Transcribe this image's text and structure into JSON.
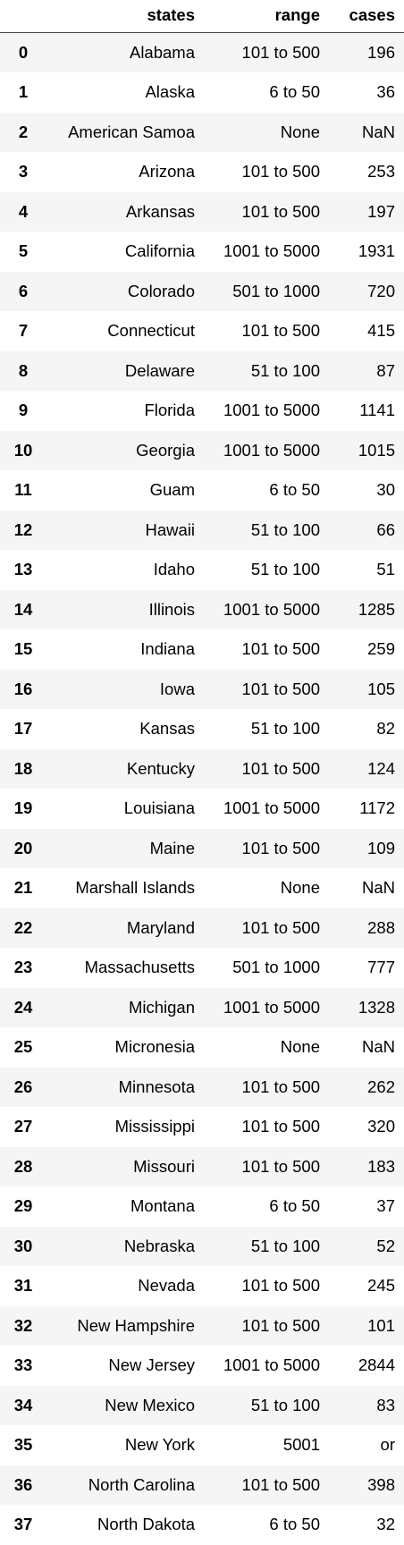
{
  "columns": {
    "index": "",
    "states": "states",
    "range": "range",
    "cases": "cases"
  },
  "rows": [
    {
      "idx": "0",
      "state": "Alabama",
      "range": "101 to 500",
      "cases": "196"
    },
    {
      "idx": "1",
      "state": "Alaska",
      "range": "6 to 50",
      "cases": "36"
    },
    {
      "idx": "2",
      "state": "American Samoa",
      "range": "None",
      "cases": "NaN"
    },
    {
      "idx": "3",
      "state": "Arizona",
      "range": "101 to 500",
      "cases": "253"
    },
    {
      "idx": "4",
      "state": "Arkansas",
      "range": "101 to 500",
      "cases": "197"
    },
    {
      "idx": "5",
      "state": "California",
      "range": "1001 to 5000",
      "cases": "1931"
    },
    {
      "idx": "6",
      "state": "Colorado",
      "range": "501 to 1000",
      "cases": "720"
    },
    {
      "idx": "7",
      "state": "Connecticut",
      "range": "101 to 500",
      "cases": "415"
    },
    {
      "idx": "8",
      "state": "Delaware",
      "range": "51 to 100",
      "cases": "87"
    },
    {
      "idx": "9",
      "state": "Florida",
      "range": "1001 to 5000",
      "cases": "1141"
    },
    {
      "idx": "10",
      "state": "Georgia",
      "range": "1001 to 5000",
      "cases": "1015"
    },
    {
      "idx": "11",
      "state": "Guam",
      "range": "6 to 50",
      "cases": "30"
    },
    {
      "idx": "12",
      "state": "Hawaii",
      "range": "51 to 100",
      "cases": "66"
    },
    {
      "idx": "13",
      "state": "Idaho",
      "range": "51 to 100",
      "cases": "51"
    },
    {
      "idx": "14",
      "state": "Illinois",
      "range": "1001 to 5000",
      "cases": "1285"
    },
    {
      "idx": "15",
      "state": "Indiana",
      "range": "101 to 500",
      "cases": "259"
    },
    {
      "idx": "16",
      "state": "Iowa",
      "range": "101 to 500",
      "cases": "105"
    },
    {
      "idx": "17",
      "state": "Kansas",
      "range": "51 to 100",
      "cases": "82"
    },
    {
      "idx": "18",
      "state": "Kentucky",
      "range": "101 to 500",
      "cases": "124"
    },
    {
      "idx": "19",
      "state": "Louisiana",
      "range": "1001 to 5000",
      "cases": "1172"
    },
    {
      "idx": "20",
      "state": "Maine",
      "range": "101 to 500",
      "cases": "109"
    },
    {
      "idx": "21",
      "state": "Marshall Islands",
      "range": "None",
      "cases": "NaN"
    },
    {
      "idx": "22",
      "state": "Maryland",
      "range": "101 to 500",
      "cases": "288"
    },
    {
      "idx": "23",
      "state": "Massachusetts",
      "range": "501 to 1000",
      "cases": "777"
    },
    {
      "idx": "24",
      "state": "Michigan",
      "range": "1001 to 5000",
      "cases": "1328"
    },
    {
      "idx": "25",
      "state": "Micronesia",
      "range": "None",
      "cases": "NaN"
    },
    {
      "idx": "26",
      "state": "Minnesota",
      "range": "101 to 500",
      "cases": "262"
    },
    {
      "idx": "27",
      "state": "Mississippi",
      "range": "101 to 500",
      "cases": "320"
    },
    {
      "idx": "28",
      "state": "Missouri",
      "range": "101 to 500",
      "cases": "183"
    },
    {
      "idx": "29",
      "state": "Montana",
      "range": "6 to 50",
      "cases": "37"
    },
    {
      "idx": "30",
      "state": "Nebraska",
      "range": "51 to 100",
      "cases": "52"
    },
    {
      "idx": "31",
      "state": "Nevada",
      "range": "101 to 500",
      "cases": "245"
    },
    {
      "idx": "32",
      "state": "New Hampshire",
      "range": "101 to 500",
      "cases": "101"
    },
    {
      "idx": "33",
      "state": "New Jersey",
      "range": "1001 to 5000",
      "cases": "2844"
    },
    {
      "idx": "34",
      "state": "New Mexico",
      "range": "51 to 100",
      "cases": "83"
    },
    {
      "idx": "35",
      "state": "New York",
      "range": "5001",
      "cases": "or"
    },
    {
      "idx": "36",
      "state": "North Carolina",
      "range": "101 to 500",
      "cases": "398"
    },
    {
      "idx": "37",
      "state": "North Dakota",
      "range": "6 to 50",
      "cases": "32"
    }
  ]
}
